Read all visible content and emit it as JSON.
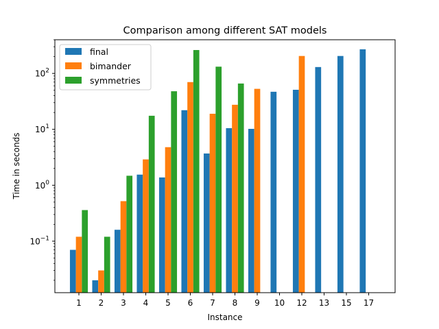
{
  "chart_data": {
    "type": "bar",
    "title": "Comparison among different SAT models",
    "xlabel": "Instance",
    "ylabel": "Time in seconds",
    "yscale": "log",
    "ylim": [
      0.012,
      400
    ],
    "yticks": [
      {
        "value": 0.1,
        "base": "10",
        "exp": "−1"
      },
      {
        "value": 1,
        "base": "10",
        "exp": "0"
      },
      {
        "value": 10,
        "base": "10",
        "exp": "1"
      },
      {
        "value": 100,
        "base": "10",
        "exp": "2"
      }
    ],
    "categories": [
      "1",
      "2",
      "3",
      "4",
      "5",
      "6",
      "7",
      "8",
      "9",
      "10",
      "12",
      "13",
      "15",
      "17"
    ],
    "series": [
      {
        "name": "final",
        "color": "#1f77b4",
        "values": [
          0.07,
          0.02,
          0.16,
          1.55,
          1.38,
          22,
          3.7,
          10.5,
          10.2,
          47,
          51,
          130,
          205,
          270
        ]
      },
      {
        "name": "bimander",
        "color": "#ff7f0e",
        "values": [
          0.12,
          0.03,
          0.52,
          2.9,
          4.8,
          70,
          19,
          27.5,
          53,
          null,
          205,
          null,
          null,
          null
        ]
      },
      {
        "name": "symmetries",
        "color": "#2ca02c",
        "values": [
          0.36,
          0.12,
          1.48,
          17.5,
          48,
          262,
          132,
          66,
          null,
          null,
          null,
          null,
          null,
          null
        ]
      }
    ],
    "legend": "upper left",
    "grid": false
  }
}
